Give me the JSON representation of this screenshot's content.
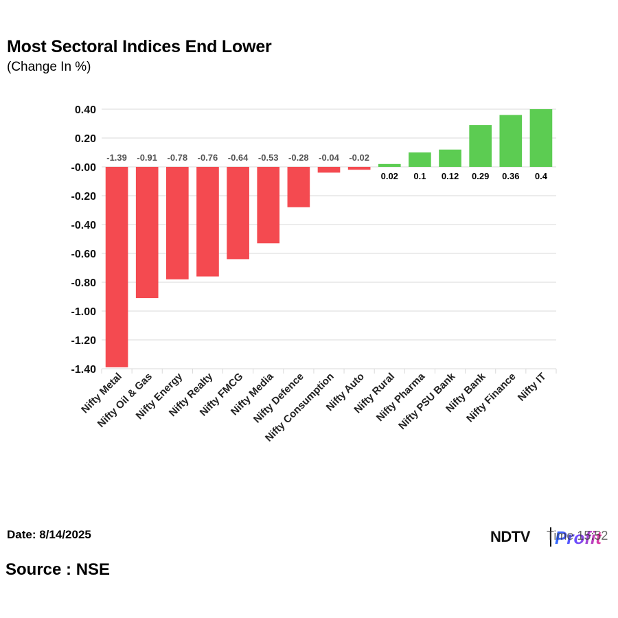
{
  "title": "Most Sectoral Indices End Lower",
  "subtitle": "(Change In %)",
  "footer": {
    "date": "Date: 8/14/2025",
    "source": "Source : NSE"
  },
  "logo": {
    "ndtv": "NDTV",
    "profit": "Profit",
    "overlay_text": "Time 15:52"
  },
  "colors": {
    "negative": "#f44a50",
    "positive": "#5ccc52",
    "grid": "#d9d9d9",
    "negative_label": "#555555",
    "positive_label": "#000000"
  },
  "chart_data": {
    "type": "bar",
    "categories": [
      "Nifty Metal",
      "Nifty Oil & Gas",
      "Nifty Energy",
      "Nifty Realty",
      "Nifty FMCG",
      "Nifty Media",
      "Nifty Defence",
      "Nifty Consumption",
      "Nifty Auto",
      "Nifty Rural",
      "Nifty Pharma",
      "Nifty PSU Bank",
      "Nifty Bank",
      "Nifty Finance",
      "Nifty IT"
    ],
    "values": [
      -1.39,
      -0.91,
      -0.78,
      -0.76,
      -0.64,
      -0.53,
      -0.28,
      -0.04,
      -0.02,
      0.02,
      0.1,
      0.12,
      0.29,
      0.36,
      0.4
    ],
    "data_labels": [
      "-1.39",
      "-0.91",
      "-0.78",
      "-0.76",
      "-0.64",
      "-0.53",
      "-0.28",
      "-0.04",
      "-0.02",
      "0.02",
      "0.1",
      "0.12",
      "0.29",
      "0.36",
      "0.4"
    ],
    "yticks": [
      0.4,
      0.2,
      0,
      -0.2,
      -0.4,
      -0.6,
      -0.8,
      -1.0,
      -1.2,
      -1.4
    ],
    "ytick_labels": [
      "0.40",
      "0.20",
      "-0.00",
      "-0.20",
      "-0.40",
      "-0.60",
      "-0.80",
      "-1.00",
      "-1.20",
      "-1.40"
    ],
    "ylim": [
      -1.4,
      0.4
    ],
    "title": "Most Sectoral Indices End Lower",
    "subtitle": "(Change In %)",
    "xlabel": "",
    "ylabel": "",
    "grid": true,
    "legend": "none"
  }
}
